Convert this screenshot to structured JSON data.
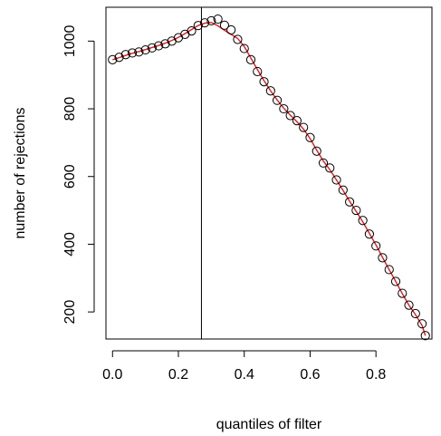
{
  "chart_data": {
    "type": "scatter",
    "title": "",
    "xlabel": "quantiles of filter",
    "ylabel": "number of rejections",
    "xlim": [
      -0.02,
      0.97
    ],
    "ylim": [
      120,
      1100
    ],
    "xticks": [
      "0.0",
      "0.2",
      "0.4",
      "0.6",
      "0.8"
    ],
    "yticks": [
      "200",
      "400",
      "600",
      "800",
      "1000"
    ],
    "vline_x": 0.27,
    "colors": {
      "points": "#000000",
      "fit_line": "#e31a1c",
      "vline": "#000000",
      "frame": "#000000"
    },
    "series": [
      {
        "type": "scatter",
        "marker": "open-circle",
        "x": [
          0.0,
          0.02,
          0.04,
          0.06,
          0.08,
          0.1,
          0.12,
          0.14,
          0.16,
          0.18,
          0.2,
          0.22,
          0.24,
          0.26,
          0.28,
          0.3,
          0.32,
          0.34,
          0.36,
          0.38,
          0.4,
          0.42,
          0.44,
          0.46,
          0.48,
          0.5,
          0.52,
          0.54,
          0.56,
          0.58,
          0.6,
          0.62,
          0.64,
          0.66,
          0.68,
          0.7,
          0.72,
          0.74,
          0.76,
          0.78,
          0.8,
          0.82,
          0.84,
          0.86,
          0.88,
          0.9,
          0.92,
          0.94,
          0.95
        ],
        "y": [
          945,
          952,
          960,
          965,
          968,
          974,
          980,
          986,
          992,
          1000,
          1010,
          1020,
          1030,
          1046,
          1054,
          1060,
          1065,
          1047,
          1033,
          1005,
          978,
          945,
          910,
          880,
          853,
          825,
          800,
          780,
          765,
          745,
          715,
          675,
          640,
          625,
          590,
          560,
          525,
          500,
          470,
          430,
          395,
          360,
          325,
          290,
          255,
          220,
          195,
          165,
          130
        ]
      },
      {
        "type": "line",
        "x": [
          0.0,
          0.02,
          0.04,
          0.06,
          0.08,
          0.1,
          0.12,
          0.14,
          0.16,
          0.18,
          0.2,
          0.22,
          0.24,
          0.26,
          0.28,
          0.3,
          0.32,
          0.34,
          0.36,
          0.38,
          0.4,
          0.42,
          0.44,
          0.46,
          0.48,
          0.5,
          0.52,
          0.54,
          0.56,
          0.58,
          0.6,
          0.62,
          0.64,
          0.66,
          0.68,
          0.7,
          0.72,
          0.74,
          0.76,
          0.78,
          0.8,
          0.82,
          0.84,
          0.86,
          0.88,
          0.9,
          0.92,
          0.94,
          0.95
        ],
        "y": [
          945,
          951,
          958,
          964,
          969,
          975,
          981,
          987,
          994,
          1002,
          1011,
          1022,
          1034,
          1046,
          1053,
          1055,
          1045,
          1032,
          1020,
          1008,
          984,
          950,
          916,
          883,
          853,
          826,
          802,
          781,
          762,
          740,
          712,
          678,
          646,
          620,
          590,
          559,
          527,
          497,
          466,
          432,
          398,
          361,
          325,
          290,
          254,
          220,
          192,
          160,
          130
        ]
      }
    ]
  }
}
